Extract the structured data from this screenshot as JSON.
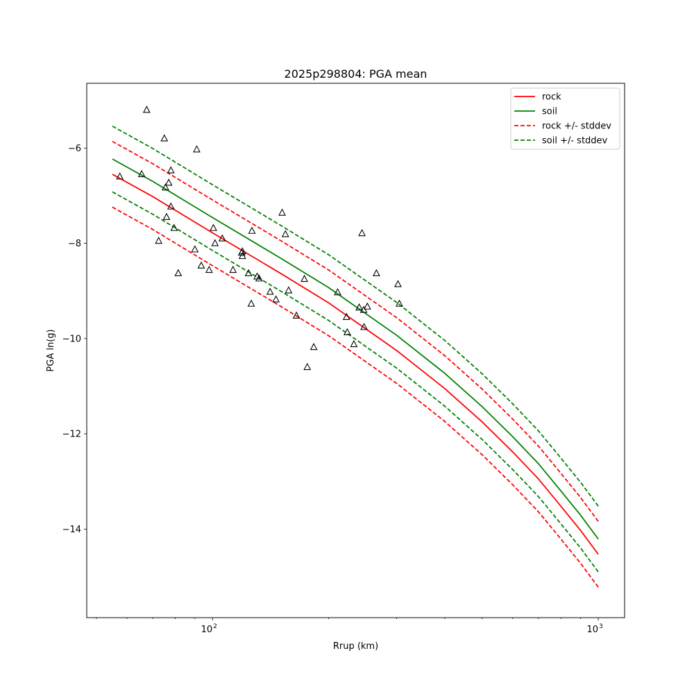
{
  "chart_data": {
    "type": "scatter",
    "title": "2025p298804: PGA mean",
    "xlabel": "Rrup (km)",
    "ylabel": "PGA ln(g)",
    "xscale": "log",
    "xlim": [
      47.2,
      1170
    ],
    "ylim": [
      -15.86,
      -4.64
    ],
    "grid": false,
    "legend_position": "top-right",
    "x_tick_labels": [
      {
        "value": 100,
        "base": "10",
        "exponent": "2"
      },
      {
        "value": 1000,
        "base": "10",
        "exponent": "3"
      }
    ],
    "y_ticks": [
      -14,
      -12,
      -10,
      -8,
      -6
    ],
    "y_tick_labels": [
      "−14",
      "−12",
      "−10",
      "−8",
      "−6"
    ],
    "series": [
      {
        "name": "rock",
        "kind": "line",
        "color": "#ff0000",
        "dash": "solid",
        "x": [
          55,
          70,
          100,
          150,
          200,
          300,
          400,
          500,
          600,
          700,
          800,
          900,
          1000
        ],
        "y": [
          -6.55,
          -7.02,
          -7.78,
          -8.63,
          -9.25,
          -10.25,
          -11.05,
          -11.75,
          -12.38,
          -12.95,
          -13.52,
          -14.03,
          -14.53
        ]
      },
      {
        "name": "soil",
        "kind": "line",
        "color": "#008000",
        "dash": "solid",
        "x": [
          55,
          70,
          100,
          150,
          200,
          300,
          400,
          500,
          600,
          700,
          800,
          900,
          1000
        ],
        "y": [
          -6.23,
          -6.7,
          -7.46,
          -8.31,
          -8.93,
          -9.93,
          -10.73,
          -11.43,
          -12.06,
          -12.63,
          -13.2,
          -13.71,
          -14.21
        ]
      },
      {
        "name": "rock +/- stddev",
        "kind": "line",
        "color": "#ff0000",
        "dash": "dashed",
        "x": [
          55,
          70,
          100,
          150,
          200,
          300,
          400,
          500,
          600,
          700,
          800,
          900,
          1000
        ],
        "y": [
          -5.86,
          -6.33,
          -7.09,
          -7.94,
          -8.56,
          -9.56,
          -10.36,
          -11.06,
          -11.69,
          -12.26,
          -12.83,
          -13.34,
          -13.84
        ],
        "y2": [
          -7.24,
          -7.71,
          -8.47,
          -9.32,
          -9.94,
          -10.94,
          -11.74,
          -12.44,
          -13.07,
          -13.64,
          -14.21,
          -14.72,
          -15.22
        ]
      },
      {
        "name": "soil +/- stddev",
        "kind": "line",
        "color": "#008000",
        "dash": "dashed",
        "x": [
          55,
          70,
          100,
          150,
          200,
          300,
          400,
          500,
          600,
          700,
          800,
          900,
          1000
        ],
        "y": [
          -5.54,
          -6.01,
          -6.77,
          -7.62,
          -8.24,
          -9.24,
          -10.04,
          -10.74,
          -11.37,
          -11.94,
          -12.51,
          -13.02,
          -13.52
        ],
        "y2": [
          -6.92,
          -7.39,
          -8.15,
          -9.0,
          -9.62,
          -10.62,
          -11.42,
          -12.12,
          -12.75,
          -13.32,
          -13.89,
          -14.4,
          -14.9
        ]
      }
    ],
    "observations": {
      "marker": "open-triangle",
      "color": "#000000",
      "points": [
        [
          57.5,
          -6.6
        ],
        [
          65.5,
          -6.55
        ],
        [
          67.5,
          -5.2
        ],
        [
          72.5,
          -7.95
        ],
        [
          75,
          -5.8
        ],
        [
          75.5,
          -6.83
        ],
        [
          76,
          -7.45
        ],
        [
          77,
          -6.73
        ],
        [
          78,
          -6.47
        ],
        [
          78,
          -7.23
        ],
        [
          79.5,
          -7.68
        ],
        [
          81.5,
          -8.63
        ],
        [
          90,
          -8.13
        ],
        [
          91,
          -6.03
        ],
        [
          93.5,
          -8.47
        ],
        [
          98,
          -8.56
        ],
        [
          100.5,
          -7.68
        ],
        [
          101.5,
          -8.0
        ],
        [
          106,
          -7.9
        ],
        [
          113,
          -8.56
        ],
        [
          119,
          -8.2
        ],
        [
          119.5,
          -8.17
        ],
        [
          119.5,
          -8.27
        ],
        [
          124,
          -8.63
        ],
        [
          126.5,
          -7.74
        ],
        [
          126,
          -9.27
        ],
        [
          130.5,
          -8.7
        ],
        [
          132,
          -8.74
        ],
        [
          141,
          -9.02
        ],
        [
          146,
          -9.18
        ],
        [
          151.5,
          -7.36
        ],
        [
          154.5,
          -7.81
        ],
        [
          157.5,
          -8.99
        ],
        [
          165,
          -9.52
        ],
        [
          173,
          -8.75
        ],
        [
          176,
          -10.6
        ],
        [
          183,
          -10.18
        ],
        [
          211,
          -9.03
        ],
        [
          222.5,
          -9.55
        ],
        [
          223.5,
          -9.87
        ],
        [
          232.5,
          -10.12
        ],
        [
          240,
          -9.35
        ],
        [
          244,
          -7.79
        ],
        [
          246.5,
          -9.4
        ],
        [
          247,
          -9.76
        ],
        [
          252,
          -9.33
        ],
        [
          266,
          -8.63
        ],
        [
          302.5,
          -8.86
        ],
        [
          305,
          -9.27
        ]
      ]
    }
  }
}
